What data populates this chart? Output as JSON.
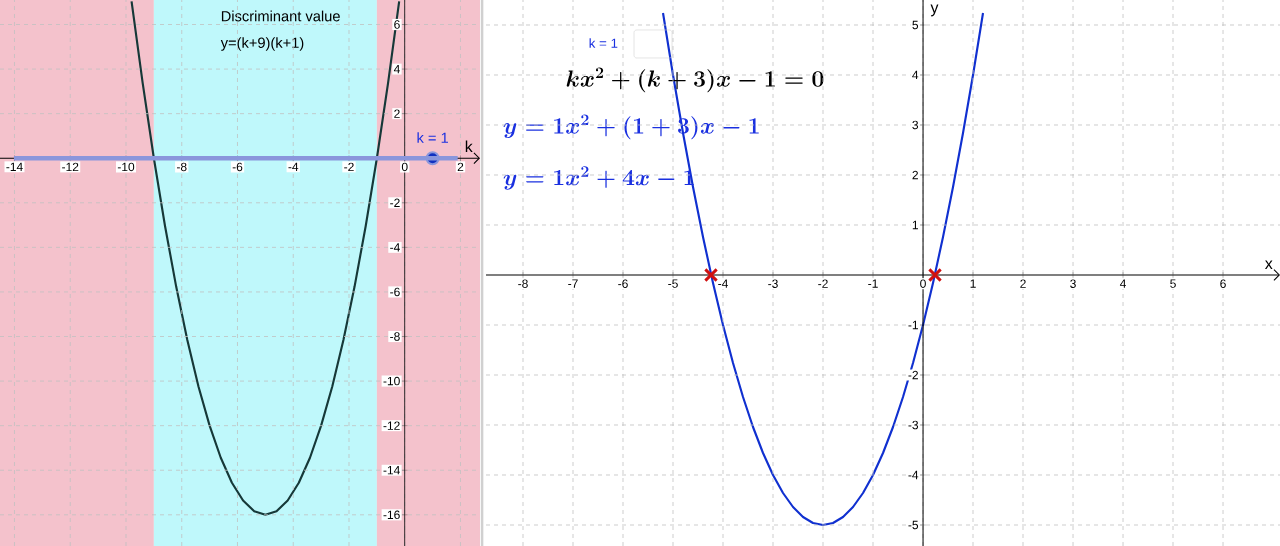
{
  "chart_data": [
    {
      "type": "line",
      "title": "Discriminant value",
      "subtitle": "y=(k+9)(k+1)",
      "xlabel": "k",
      "x": [
        -9.8,
        -9.4,
        -9.0,
        -8.6,
        -8.2,
        -7.8,
        -7.4,
        -7.0,
        -6.6,
        -6.2,
        -5.8,
        -5.4,
        -5.0,
        -4.6,
        -4.2,
        -3.8,
        -3.4,
        -3.0,
        -2.6,
        -2.2,
        -1.8,
        -1.4,
        -1.0,
        -0.6,
        -0.2
      ],
      "series": [
        {
          "color": "#163838",
          "values": [
            7.04,
            3.36,
            0,
            -3.04,
            -5.76,
            -8.16,
            -10.24,
            -12,
            -13.44,
            -14.56,
            -15.36,
            -15.84,
            -16,
            -15.84,
            -15.36,
            -14.56,
            -13.44,
            -12,
            -10.24,
            -8.16,
            -5.76,
            -3.04,
            0,
            3.36,
            7.04
          ]
        },
        {
          "type": "scatter",
          "marker": "circle",
          "color": "#1030c0",
          "x": [
            1
          ],
          "values": [
            0
          ]
        }
      ],
      "annotations": [
        {
          "text": "k = 1",
          "x": 1,
          "y": 0
        }
      ],
      "bands": [
        {
          "axis": "x",
          "from": -14.52,
          "to": -9,
          "color": "#f4c2cc"
        },
        {
          "axis": "x",
          "from": -9,
          "to": -1,
          "color": "#bff8fb"
        },
        {
          "axis": "x",
          "from": -1,
          "to": 2.7,
          "color": "#f4c2cc"
        }
      ],
      "ref_lines": [
        {
          "axis": "y",
          "value": 0,
          "color": "#8a96dc"
        }
      ],
      "xlim": [
        -14.52,
        2.7
      ],
      "ylim": [
        -17.4,
        7.1
      ],
      "xticks": [
        -14,
        -12,
        -10,
        -8,
        -6,
        -4,
        -2,
        0,
        2
      ],
      "yticks": [
        -16,
        -14,
        -12,
        -10,
        -8,
        -6,
        -4,
        -2,
        2,
        4,
        6
      ],
      "grid": true
    },
    {
      "type": "line",
      "xlabel": "x",
      "ylabel": "y",
      "x": [
        -5.2,
        -5.0,
        -4.8,
        -4.6,
        -4.4,
        -4.2,
        -4.0,
        -3.8,
        -3.6,
        -3.4,
        -3.2,
        -3.0,
        -2.8,
        -2.6,
        -2.4,
        -2.2,
        -2.0,
        -1.8,
        -1.6,
        -1.4,
        -1.2,
        -1.0,
        -0.8,
        -0.6,
        -0.4,
        -0.2,
        0.0,
        0.2,
        0.4,
        0.6,
        0.8,
        1.0,
        1.2
      ],
      "series": [
        {
          "color": "#1030d0",
          "values": [
            5.24,
            4,
            2.84,
            1.76,
            0.76,
            -0.16,
            -1,
            -1.76,
            -2.44,
            -3.04,
            -3.56,
            -4,
            -4.36,
            -4.64,
            -4.84,
            -4.96,
            -5,
            -4.96,
            -4.84,
            -4.64,
            -4.36,
            -4,
            -3.56,
            -3.04,
            -2.44,
            -1.76,
            -1,
            -0.16,
            0.76,
            1.76,
            2.84,
            4,
            5.24
          ]
        },
        {
          "type": "scatter",
          "marker": "cross",
          "color": "#d01010",
          "x": [
            -4.24,
            0.24
          ],
          "values": [
            0,
            0
          ]
        }
      ],
      "annotations": [
        "k = 1",
        "kx^2 + (k+3)x - 1 = 0",
        "y = 1x^2 + (1+3)x - 1",
        "y = 1x^2 + 4x - 1"
      ],
      "xlim": [
        -8.74,
        7.14
      ],
      "ylim": [
        -5.42,
        5.5
      ],
      "xticks": [
        -8,
        -7,
        -6,
        -5,
        -4,
        -3,
        -2,
        -1,
        0,
        1,
        2,
        3,
        4,
        5,
        6
      ],
      "yticks": [
        -5,
        -4,
        -3,
        -2,
        -1,
        1,
        2,
        3,
        4,
        5
      ],
      "grid": true
    }
  ]
}
